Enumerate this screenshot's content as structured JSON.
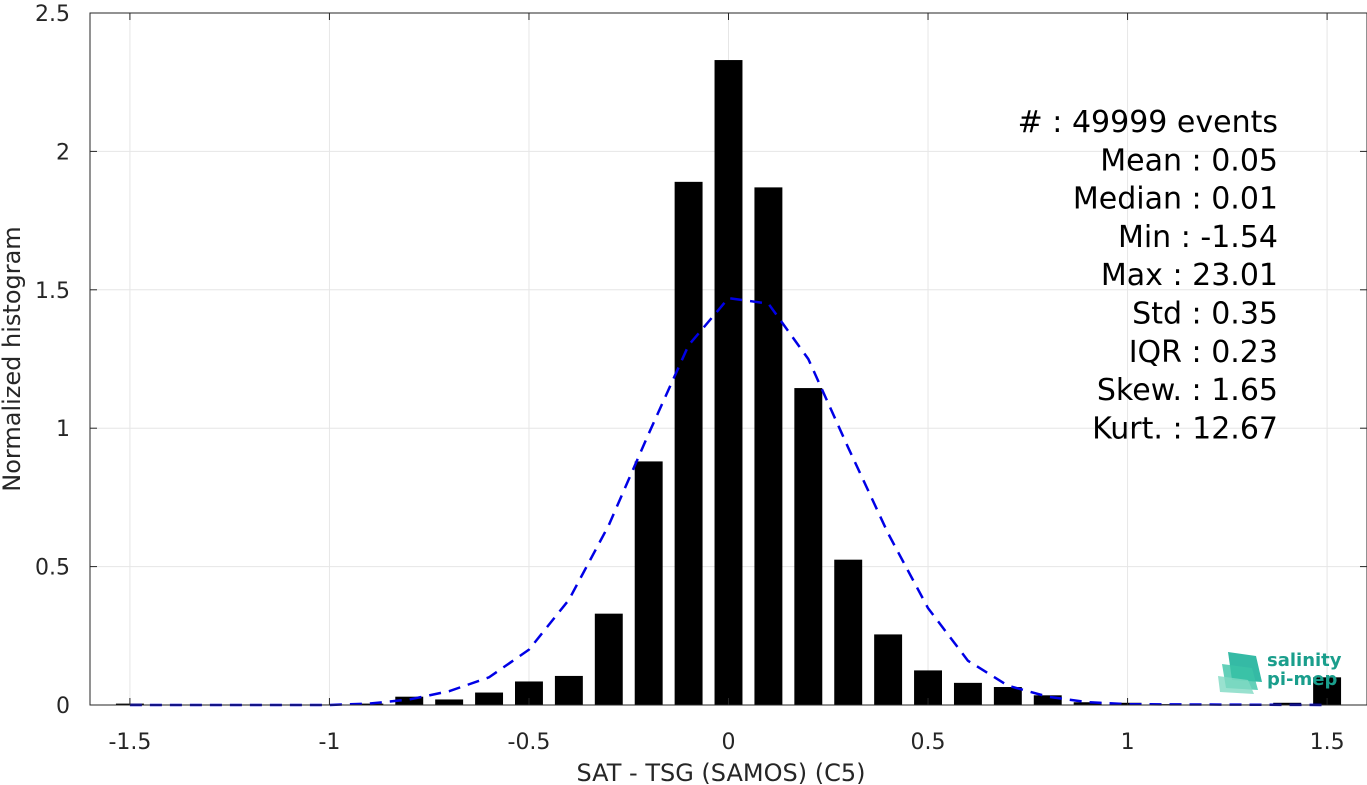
{
  "chart_data": {
    "type": "bar",
    "xlabel": "SAT - TSG (SAMOS) (C5)",
    "ylabel": "Normalized histogram",
    "xlim": [
      -1.6,
      1.6
    ],
    "ylim": [
      0,
      2.5
    ],
    "grid": true,
    "x_ticks": [
      "-1.5",
      "-1",
      "-0.5",
      "0",
      "0.5",
      "1",
      "1.5"
    ],
    "x_tick_values": [
      -1.5,
      -1,
      -0.5,
      0,
      0.5,
      1,
      1.5
    ],
    "y_ticks": [
      "0",
      "0.5",
      "1",
      "1.5",
      "2",
      "2.5"
    ],
    "y_tick_values": [
      0,
      0.5,
      1,
      1.5,
      2,
      2.5
    ],
    "bar_color": "#000000",
    "bin_width": 0.1,
    "bins": [
      {
        "x": -1.5,
        "y": 0.005
      },
      {
        "x": -1.4,
        "y": 0.0
      },
      {
        "x": -1.3,
        "y": 0.0
      },
      {
        "x": -1.2,
        "y": 0.0
      },
      {
        "x": -1.1,
        "y": 0.0
      },
      {
        "x": -1.0,
        "y": 0.002
      },
      {
        "x": -0.9,
        "y": 0.005
      },
      {
        "x": -0.8,
        "y": 0.03
      },
      {
        "x": -0.7,
        "y": 0.02
      },
      {
        "x": -0.6,
        "y": 0.045
      },
      {
        "x": -0.5,
        "y": 0.085
      },
      {
        "x": -0.4,
        "y": 0.105
      },
      {
        "x": -0.3,
        "y": 0.33
      },
      {
        "x": -0.2,
        "y": 0.88
      },
      {
        "x": -0.1,
        "y": 1.89
      },
      {
        "x": 0.0,
        "y": 2.33
      },
      {
        "x": 0.1,
        "y": 1.87
      },
      {
        "x": 0.2,
        "y": 1.145
      },
      {
        "x": 0.3,
        "y": 0.525
      },
      {
        "x": 0.4,
        "y": 0.255
      },
      {
        "x": 0.5,
        "y": 0.125
      },
      {
        "x": 0.6,
        "y": 0.08
      },
      {
        "x": 0.7,
        "y": 0.065
      },
      {
        "x": 0.8,
        "y": 0.035
      },
      {
        "x": 0.9,
        "y": 0.01
      },
      {
        "x": 1.0,
        "y": 0.008
      },
      {
        "x": 1.1,
        "y": 0.003
      },
      {
        "x": 1.2,
        "y": 0.002
      },
      {
        "x": 1.3,
        "y": 0.002
      },
      {
        "x": 1.4,
        "y": 0.008
      },
      {
        "x": 1.5,
        "y": 0.1
      }
    ],
    "fit_curve": {
      "style": "dashed",
      "color": "#0000e6",
      "x": [
        -1.5,
        -1.0,
        -0.9,
        -0.8,
        -0.7,
        -0.6,
        -0.5,
        -0.4,
        -0.3,
        -0.2,
        -0.1,
        0.0,
        0.1,
        0.2,
        0.3,
        0.4,
        0.5,
        0.6,
        0.7,
        0.8,
        0.9,
        1.0,
        1.5
      ],
      "y": [
        0.0,
        0.0,
        0.005,
        0.02,
        0.05,
        0.1,
        0.2,
        0.38,
        0.65,
        0.98,
        1.3,
        1.47,
        1.45,
        1.25,
        0.93,
        0.62,
        0.35,
        0.16,
        0.07,
        0.03,
        0.01,
        0.003,
        0.0
      ]
    },
    "stats": [
      "#  : 49999 events",
      "Mean : 0.05",
      "Median : 0.01",
      "Min : -1.54",
      "Max : 23.01",
      "Std : 0.35",
      "IQR : 0.23",
      "Skew. : 1.65",
      "Kurt. : 12.67"
    ]
  },
  "logo": {
    "line1": "salinity",
    "line2": "pi-mep",
    "color": "#1a9e8c"
  }
}
